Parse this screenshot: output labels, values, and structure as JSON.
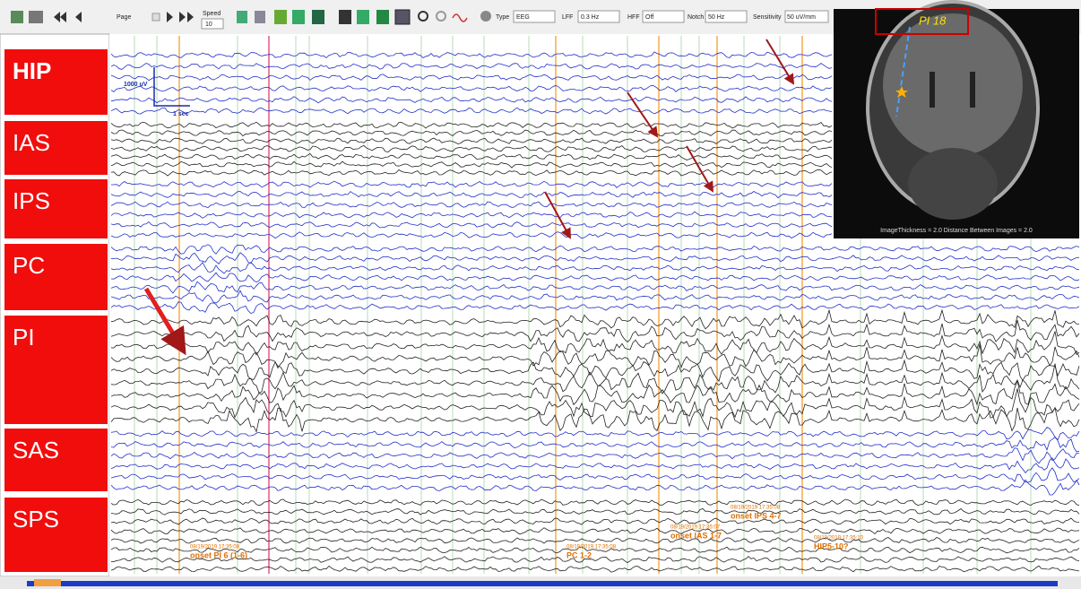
{
  "toolbar": {
    "page": "Page",
    "speed": "Speed",
    "speed_value": "10",
    "type": "Type",
    "type_value": "EEG",
    "lff": "LFF",
    "lff_value": "0.3 Hz",
    "hff": "HFF",
    "hff_value": "Off",
    "notch": "Notch",
    "notch_value": "50 Hz",
    "sensitivity": "Sensitivity",
    "sensitivity_value": "50 uV/mm"
  },
  "channel_groups": [
    "HIP",
    "IAS",
    "IPS",
    "PC",
    "PI",
    "SAS",
    "SPS"
  ],
  "scale": {
    "amplitude": "1000 uV",
    "time": "1 sec"
  },
  "mri": {
    "slice_label": "PI 18",
    "caption": "ImageThickness = 2.0 Distance Between Images = 2.0"
  },
  "annotations": [
    {
      "timestamp": "08/19/2019 17:35:08",
      "label": "onset PI 6 (1-6)"
    },
    {
      "timestamp": "08/19/2019 17:35:08",
      "label": "PC 1-2"
    },
    {
      "timestamp": "08/19/2019 17:35:07",
      "label": "onset IAS 1-7"
    },
    {
      "timestamp": "08/19/2019 17:35:08",
      "label": "onset IPS 4-7"
    },
    {
      "timestamp": "08/19/2019 17:35:10",
      "label": "HIP5-10?"
    }
  ]
}
